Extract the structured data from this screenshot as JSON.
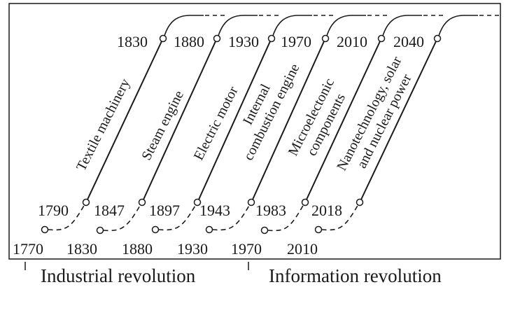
{
  "diagram": {
    "waves": [
      {
        "label_lines": [
          "Textile machinery"
        ],
        "start_year": "1770",
        "rise_year": "1790",
        "peak_year": "1830"
      },
      {
        "label_lines": [
          "Steam engine"
        ],
        "start_year": "1830",
        "rise_year": "1847",
        "peak_year": "1880"
      },
      {
        "label_lines": [
          "Electric motor"
        ],
        "start_year": "1880",
        "rise_year": "1897",
        "peak_year": "1930"
      },
      {
        "label_lines": [
          "Internal",
          "combustion engine"
        ],
        "start_year": "1930",
        "rise_year": "1943",
        "peak_year": "1970"
      },
      {
        "label_lines": [
          "Microelectonic",
          "components"
        ],
        "start_year": "1970",
        "rise_year": "1983",
        "peak_year": "2010"
      },
      {
        "label_lines": [
          "Nanotechnology, solar",
          "and nuclear power"
        ],
        "start_year": "2010",
        "rise_year": "2018",
        "peak_year": "2040"
      }
    ],
    "revolutions": [
      {
        "label": "Industrial revolution"
      },
      {
        "label": "Information revolution"
      }
    ]
  }
}
